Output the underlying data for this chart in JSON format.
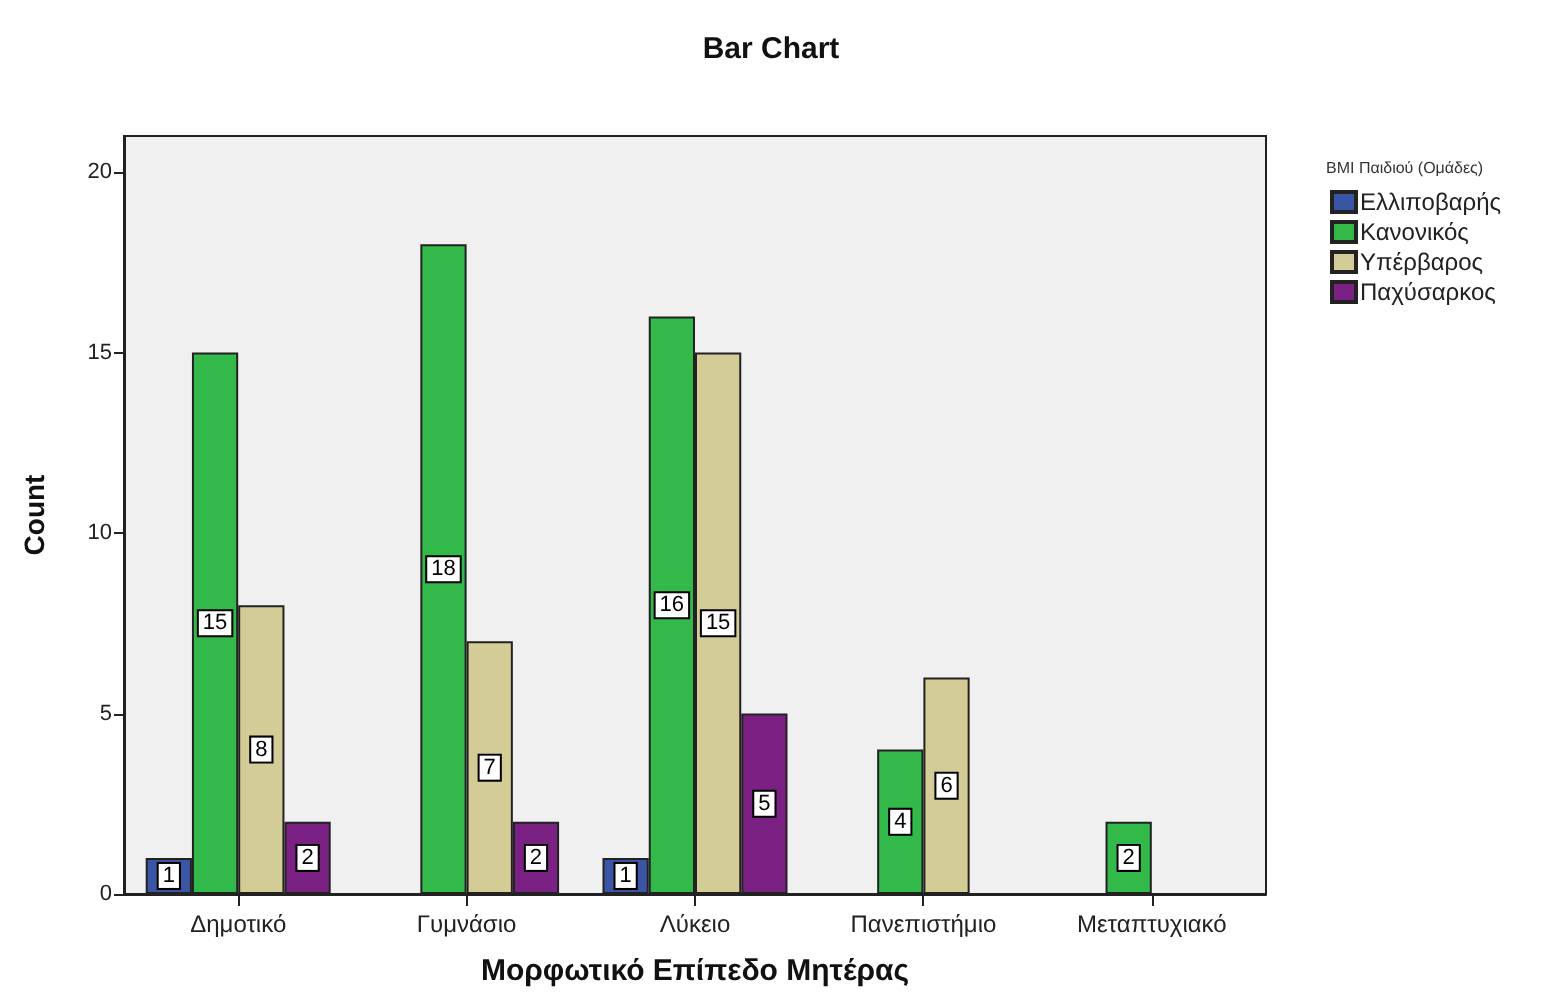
{
  "chart_data": {
    "type": "bar",
    "title": "Bar Chart",
    "xlabel": "Μορφωτικό Επίπεδο Μητέρας",
    "ylabel": "Count",
    "legend_title": "BMI Παιδιού (Ομάδες)",
    "categories": [
      "Δημοτικό",
      "Γυμνάσιο",
      "Λύκειο",
      "Πανεπιστήμιο",
      "Μεταπτυχιακό"
    ],
    "series": [
      {
        "name": "Ελλιποβαρής",
        "color": "#3a55a4",
        "values": [
          1,
          null,
          1,
          null,
          null
        ]
      },
      {
        "name": "Κανονικός",
        "color": "#33b949",
        "values": [
          15,
          18,
          16,
          4,
          2
        ]
      },
      {
        "name": "Υπέρβαρος",
        "color": "#d3cc97",
        "values": [
          8,
          7,
          15,
          6,
          null
        ]
      },
      {
        "name": "Παχύσαρκος",
        "color": "#7b2183",
        "values": [
          2,
          2,
          5,
          null,
          null
        ]
      }
    ],
    "ylim": [
      0,
      21
    ],
    "yticks": [
      0,
      5,
      10,
      15,
      20
    ],
    "legend": "top right",
    "data_labels": true
  }
}
